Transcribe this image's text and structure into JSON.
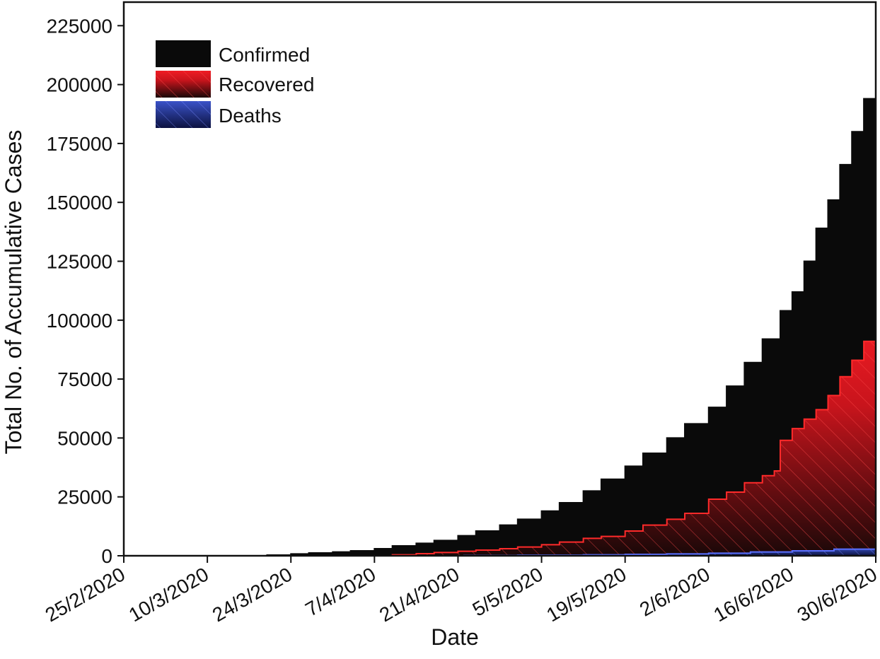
{
  "chart_data": {
    "type": "area",
    "title": "",
    "xlabel": "Date",
    "ylabel": "Total No. of Accumulative Cases",
    "x_tick_labels": [
      "25/2/2020",
      "10/3/2020",
      "24/3/2020",
      "7/4/2020",
      "21/4/2020",
      "5/5/2020",
      "19/5/2020",
      "2/6/2020",
      "16/6/2020",
      "30/6/2020"
    ],
    "y_ticks": [
      0,
      25000,
      50000,
      75000,
      100000,
      125000,
      150000,
      175000,
      200000,
      225000
    ],
    "y_tick_labels": [
      "0",
      "25000",
      "50000",
      "75000",
      "100000",
      "125000",
      "150000",
      "175000",
      "200000",
      "225000"
    ],
    "ylim": [
      0,
      235000
    ],
    "xlim": [
      "25/2/2020",
      "30/6/2020"
    ],
    "step": true,
    "grid": false,
    "legend_position": "top-left",
    "series": [
      {
        "name": "Confirmed",
        "color": "#0a0a0a",
        "points": [
          [
            "25/2/2020",
            0
          ],
          [
            "3/3/2020",
            0
          ],
          [
            "10/3/2020",
            0
          ],
          [
            "17/3/2020",
            0
          ],
          [
            "20/3/2020",
            300
          ],
          [
            "24/3/2020",
            800
          ],
          [
            "27/3/2020",
            1200
          ],
          [
            "31/3/2020",
            1600
          ],
          [
            "3/4/2020",
            2100
          ],
          [
            "7/4/2020",
            3000
          ],
          [
            "10/4/2020",
            4200
          ],
          [
            "14/4/2020",
            5300
          ],
          [
            "17/4/2020",
            6500
          ],
          [
            "21/4/2020",
            8500
          ],
          [
            "24/4/2020",
            10500
          ],
          [
            "28/4/2020",
            13000
          ],
          [
            "1/5/2020",
            15500
          ],
          [
            "5/5/2020",
            19000
          ],
          [
            "8/5/2020",
            22500
          ],
          [
            "12/5/2020",
            27500
          ],
          [
            "15/5/2020",
            32500
          ],
          [
            "19/5/2020",
            38000
          ],
          [
            "22/5/2020",
            43500
          ],
          [
            "26/5/2020",
            50000
          ],
          [
            "29/5/2020",
            56000
          ],
          [
            "2/6/2020",
            63000
          ],
          [
            "5/6/2020",
            72000
          ],
          [
            "8/6/2020",
            82000
          ],
          [
            "11/6/2020",
            92000
          ],
          [
            "14/6/2020",
            104000
          ],
          [
            "16/6/2020",
            112000
          ],
          [
            "18/6/2020",
            125000
          ],
          [
            "20/6/2020",
            139000
          ],
          [
            "22/6/2020",
            151000
          ],
          [
            "24/6/2020",
            166000
          ],
          [
            "26/6/2020",
            180000
          ],
          [
            "28/6/2020",
            194000
          ],
          [
            "30/6/2020",
            209000
          ]
        ]
      },
      {
        "name": "Recovered",
        "color": "#e8141c",
        "points": [
          [
            "25/2/2020",
            0
          ],
          [
            "7/4/2020",
            0
          ],
          [
            "10/4/2020",
            400
          ],
          [
            "14/4/2020",
            900
          ],
          [
            "17/4/2020",
            1400
          ],
          [
            "21/4/2020",
            1900
          ],
          [
            "24/4/2020",
            2400
          ],
          [
            "28/4/2020",
            3000
          ],
          [
            "1/5/2020",
            3700
          ],
          [
            "5/5/2020",
            4700
          ],
          [
            "8/5/2020",
            5800
          ],
          [
            "12/5/2020",
            7400
          ],
          [
            "15/5/2020",
            8200
          ],
          [
            "19/5/2020",
            10500
          ],
          [
            "22/5/2020",
            13000
          ],
          [
            "26/5/2020",
            15500
          ],
          [
            "29/5/2020",
            18000
          ],
          [
            "2/6/2020",
            24000
          ],
          [
            "5/6/2020",
            27000
          ],
          [
            "8/6/2020",
            31000
          ],
          [
            "11/6/2020",
            34000
          ],
          [
            "13/6/2020",
            36000
          ],
          [
            "14/6/2020",
            49000
          ],
          [
            "16/6/2020",
            54000
          ],
          [
            "18/6/2020",
            58000
          ],
          [
            "20/6/2020",
            62000
          ],
          [
            "22/6/2020",
            68000
          ],
          [
            "24/6/2020",
            76000
          ],
          [
            "26/6/2020",
            83000
          ],
          [
            "28/6/2020",
            91000
          ],
          [
            "30/6/2020",
            98000
          ]
        ]
      },
      {
        "name": "Deaths",
        "color": "#2a3aa0",
        "points": [
          [
            "25/2/2020",
            0
          ],
          [
            "21/4/2020",
            0
          ],
          [
            "22/4/2020",
            150
          ],
          [
            "1/5/2020",
            250
          ],
          [
            "12/5/2020",
            400
          ],
          [
            "19/5/2020",
            600
          ],
          [
            "26/5/2020",
            800
          ],
          [
            "2/6/2020",
            1100
          ],
          [
            "9/6/2020",
            1600
          ],
          [
            "16/6/2020",
            2100
          ],
          [
            "23/6/2020",
            2800
          ],
          [
            "30/6/2020",
            3800
          ]
        ]
      }
    ]
  }
}
